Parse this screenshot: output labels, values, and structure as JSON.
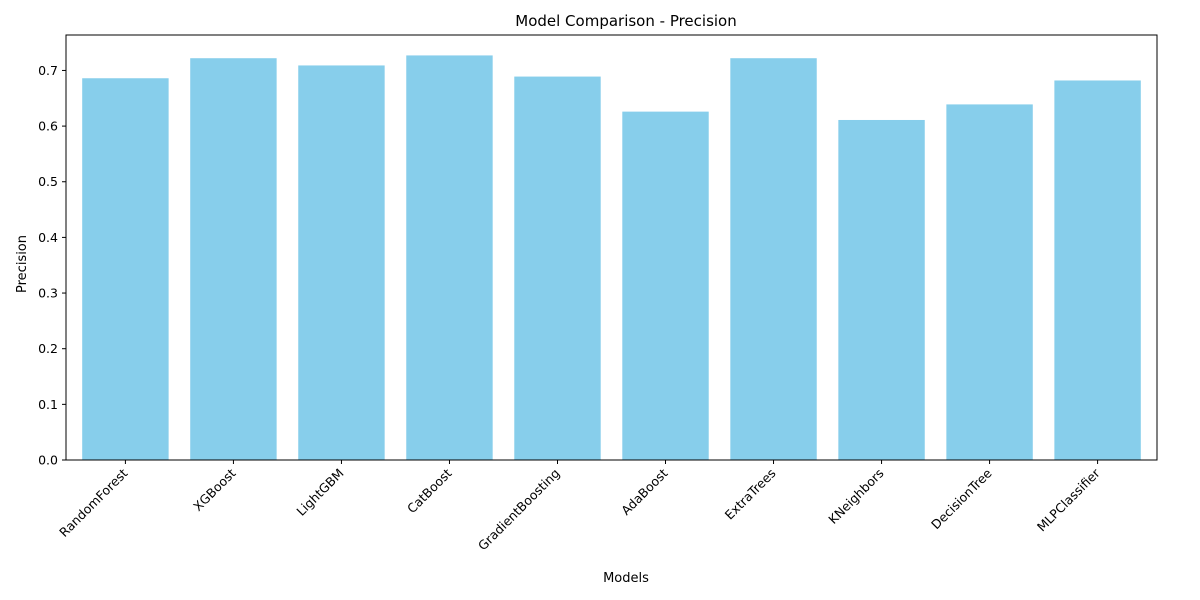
{
  "chart_data": {
    "type": "bar",
    "title": "Model Comparison - Precision",
    "xlabel": "Models",
    "ylabel": "Precision",
    "categories": [
      "RandomForest",
      "XGBoost",
      "LightGBM",
      "CatBoost",
      "GradientBoosting",
      "AdaBoost",
      "ExtraTrees",
      "KNeighbors",
      "DecisionTree",
      "MLPClassifier"
    ],
    "values": [
      0.686,
      0.722,
      0.709,
      0.727,
      0.689,
      0.626,
      0.722,
      0.611,
      0.639,
      0.682
    ],
    "ylim": [
      0,
      0.7637
    ],
    "yticks": [
      "0.0",
      "0.1",
      "0.2",
      "0.3",
      "0.4",
      "0.5",
      "0.6",
      "0.7"
    ],
    "bar_color": "#87CEEB",
    "grid": false,
    "legend": "none"
  }
}
